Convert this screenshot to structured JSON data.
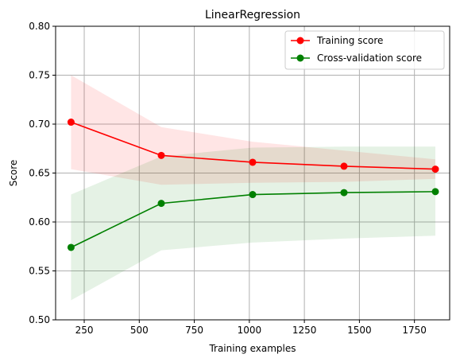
{
  "chart_data": {
    "type": "line",
    "title": "LinearRegression",
    "xlabel": "Training examples",
    "ylabel": "Score",
    "xlim": [
      120,
      1910
    ],
    "ylim": [
      0.5,
      0.8
    ],
    "xticks": [
      250,
      500,
      750,
      1000,
      1250,
      1500,
      1750
    ],
    "xtick_labels": [
      "250",
      "500",
      "750",
      "1000",
      "1250",
      "1500",
      "1750"
    ],
    "yticks": [
      0.5,
      0.55,
      0.6,
      0.65,
      0.7,
      0.75,
      0.8
    ],
    "ytick_labels": [
      "0.50",
      "0.55",
      "0.60",
      "0.65",
      "0.70",
      "0.75",
      "0.80"
    ],
    "grid": true,
    "legend_position": "top-right",
    "x": [
      190,
      600,
      1015,
      1430,
      1845
    ],
    "series": [
      {
        "name": "Training score",
        "color": "#ff0000",
        "band_color": "#ffcccc",
        "values": [
          0.702,
          0.668,
          0.661,
          0.657,
          0.654
        ],
        "band_lower": [
          0.654,
          0.638,
          0.64,
          0.641,
          0.644
        ],
        "band_upper": [
          0.75,
          0.697,
          0.682,
          0.673,
          0.664
        ]
      },
      {
        "name": "Cross-validation score",
        "color": "#008000",
        "band_color": "#c9e4c9",
        "values": [
          0.574,
          0.619,
          0.628,
          0.63,
          0.631
        ],
        "band_lower": [
          0.52,
          0.571,
          0.579,
          0.583,
          0.586
        ],
        "band_upper": [
          0.628,
          0.667,
          0.676,
          0.677,
          0.677
        ]
      }
    ]
  }
}
